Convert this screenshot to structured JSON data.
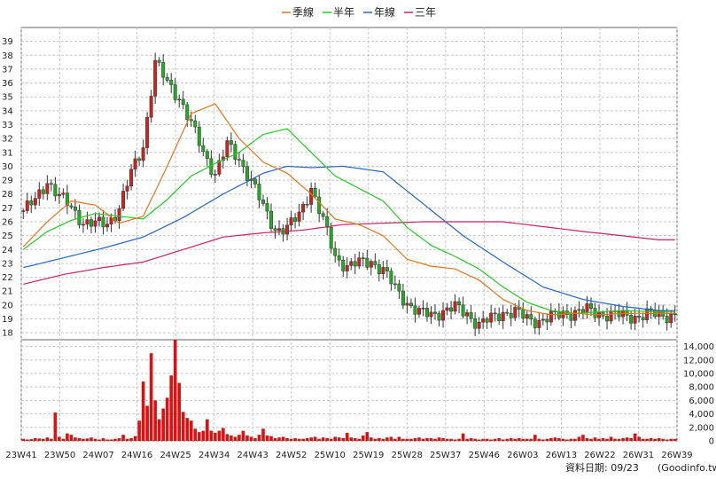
{
  "chart_data": [
    {
      "type": "candlestick",
      "legend": [
        {
          "name": "季線",
          "color": "#e8741a"
        },
        {
          "name": "半年",
          "color": "#22cc22"
        },
        {
          "name": "年線",
          "color": "#2266cc"
        },
        {
          "name": "三年",
          "color": "#cc2266"
        }
      ],
      "ylim": [
        17.5,
        40
      ],
      "yticks": [
        18,
        19,
        20,
        21,
        22,
        23,
        24,
        25,
        26,
        27,
        28,
        29,
        30,
        31,
        32,
        33,
        34,
        35,
        36,
        37,
        38,
        39
      ],
      "xticks": [
        "23W41",
        "23W50",
        "24W07",
        "24W16",
        "24W25",
        "24W34",
        "24W43",
        "24W52",
        "25W10",
        "25W19",
        "25W28",
        "25W37",
        "25W46",
        "26W03",
        "26W13",
        "26W22",
        "26W31",
        "26W39"
      ],
      "up_color": "#cc2222",
      "down_color": "#22aa22",
      "grid": true,
      "close_anchor_weeks": [
        0,
        3,
        6,
        9,
        12,
        15,
        18,
        21,
        24,
        27,
        30,
        33,
        36,
        39,
        42,
        45,
        48,
        51,
        54,
        57,
        60,
        63,
        66,
        69,
        72,
        75,
        78,
        81,
        84,
        87,
        90,
        93,
        96,
        99,
        102,
        105,
        108,
        111,
        114,
        117,
        120,
        123,
        126,
        129,
        132,
        135,
        138,
        141,
        144,
        147,
        150,
        153,
        156,
        159
      ],
      "close_anchor_values": [
        26.8,
        27.5,
        29.0,
        27.8,
        27.0,
        26.0,
        25.8,
        25.9,
        27.0,
        29.5,
        31.5,
        37.5,
        36.0,
        35.0,
        33.0,
        31.0,
        29.5,
        31.5,
        30.5,
        29.0,
        27.0,
        25.5,
        25.5,
        26.5,
        28.5,
        26.0,
        23.5,
        22.8,
        23.0,
        23.2,
        22.5,
        21.2,
        20.2,
        19.4,
        19.3,
        19.6,
        19.8,
        19.4,
        18.6,
        19.0,
        19.5,
        19.5,
        19.0,
        18.9,
        19.1,
        19.4,
        19.5,
        19.6,
        19.4,
        19.3,
        19.2,
        19.2,
        19.3,
        19.3
      ],
      "ma_q_weeks": [
        0,
        6,
        12,
        18,
        24,
        30,
        36,
        42,
        48,
        54,
        60,
        66,
        72,
        78,
        84,
        90,
        96,
        102,
        108,
        114,
        120,
        126,
        132,
        138,
        144,
        150,
        159
      ],
      "ma_q_values": [
        24.2,
        26.0,
        27.5,
        27.2,
        25.9,
        26.4,
        30.0,
        33.8,
        34.5,
        32.0,
        30.3,
        29.5,
        28.0,
        26.2,
        25.8,
        25.0,
        23.3,
        22.8,
        22.6,
        21.8,
        20.4,
        19.6,
        19.3,
        19.4,
        19.3,
        19.4,
        19.4
      ],
      "ma_h_weeks": [
        0,
        6,
        12,
        18,
        24,
        30,
        36,
        42,
        48,
        54,
        60,
        66,
        72,
        78,
        84,
        90,
        96,
        102,
        108,
        114,
        120,
        126,
        132,
        138,
        144,
        150,
        159
      ],
      "ma_h_values": [
        24.0,
        25.3,
        26.1,
        26.6,
        26.4,
        26.2,
        27.6,
        29.3,
        30.2,
        31.0,
        32.3,
        32.7,
        31.0,
        29.3,
        28.4,
        27.5,
        25.6,
        24.3,
        23.5,
        22.6,
        21.3,
        20.2,
        19.6,
        19.4,
        19.5,
        19.6,
        19.5
      ],
      "ma_y_weeks": [
        0,
        10,
        20,
        30,
        40,
        50,
        60,
        66,
        72,
        80,
        90,
        100,
        110,
        120,
        130,
        140,
        150,
        159
      ],
      "ma_y_values": [
        22.7,
        23.4,
        24.1,
        24.9,
        26.3,
        28.0,
        29.5,
        30.0,
        29.9,
        30.0,
        29.6,
        27.3,
        25.0,
        23.1,
        21.3,
        20.4,
        19.9,
        19.6
      ],
      "ma_3y_weeks": [
        0,
        10,
        20,
        30,
        40,
        50,
        60,
        70,
        80,
        90,
        100,
        120,
        140,
        159
      ],
      "ma_3y_values": [
        21.5,
        22.2,
        22.7,
        23.1,
        24.0,
        24.9,
        25.2,
        25.4,
        25.8,
        25.9,
        26.0,
        26.0,
        25.3,
        24.7
      ]
    },
    {
      "type": "bar",
      "name": "volume",
      "color": "#dd1111",
      "ylim": [
        0,
        15000
      ],
      "yticks": [
        "0",
        "2,000",
        "4,000",
        "6,000",
        "8,000",
        "10,000",
        "12,000",
        "14,000"
      ],
      "values": [
        300,
        200,
        250,
        400,
        350,
        300,
        500,
        300,
        4200,
        600,
        300,
        1100,
        900,
        500,
        400,
        300,
        350,
        500,
        300,
        200,
        400,
        200,
        200,
        300,
        400,
        900,
        300,
        400,
        700,
        3000,
        8800,
        5200,
        13000,
        6000,
        3200,
        4800,
        6400,
        9700,
        15600,
        8600,
        4300,
        3400,
        3000,
        1800,
        1300,
        1500,
        3200,
        1500,
        1200,
        1500,
        1900,
        1000,
        800,
        600,
        900,
        1500,
        800,
        600,
        400,
        900,
        1800,
        800,
        700,
        400,
        500,
        600,
        400,
        300,
        400,
        300,
        300,
        400,
        500,
        600,
        300,
        500,
        400,
        300,
        600,
        500,
        400,
        1200,
        500,
        400,
        300,
        800,
        1300,
        500,
        300,
        400,
        300,
        500,
        600,
        300,
        600,
        300,
        300,
        300,
        400,
        500,
        300,
        400,
        400,
        300,
        500,
        400,
        300,
        300,
        200,
        300,
        1100,
        300,
        400,
        300,
        200,
        300,
        300,
        200,
        300,
        400,
        200,
        300,
        400,
        300,
        400,
        300,
        300,
        300,
        900,
        300,
        200,
        300,
        400,
        500,
        400,
        300,
        200,
        300,
        300,
        600,
        900,
        400,
        300,
        500,
        300,
        400,
        300,
        600,
        300,
        300,
        400,
        500,
        400,
        1100,
        600,
        300,
        300,
        400,
        300,
        400,
        300,
        200,
        300,
        300
      ]
    }
  ],
  "footer": {
    "date_label": "資料日期: 09/23",
    "source": "(Goodinfo.tw)"
  }
}
